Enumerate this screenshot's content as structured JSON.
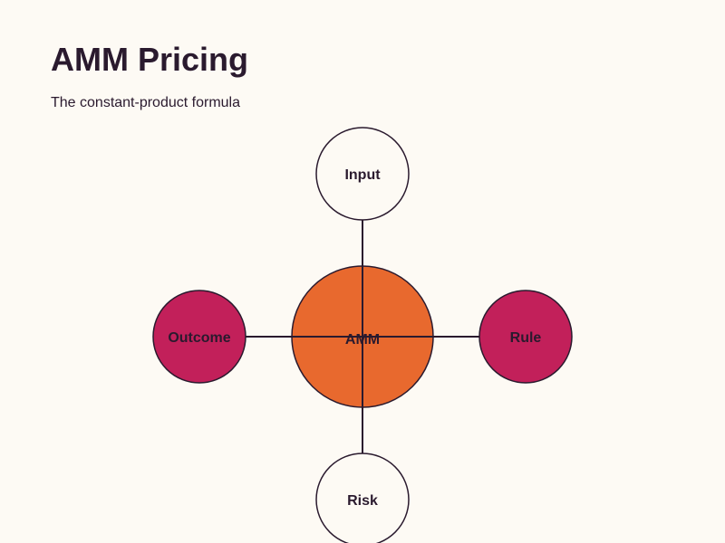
{
  "header": {
    "title": "AMM Pricing",
    "subtitle": "The constant-product formula"
  },
  "nodes": [
    {
      "label": "AMM"
    },
    {
      "label": "Input"
    },
    {
      "label": "Rule"
    },
    {
      "label": "Risk"
    },
    {
      "label": "Outcome"
    }
  ]
}
